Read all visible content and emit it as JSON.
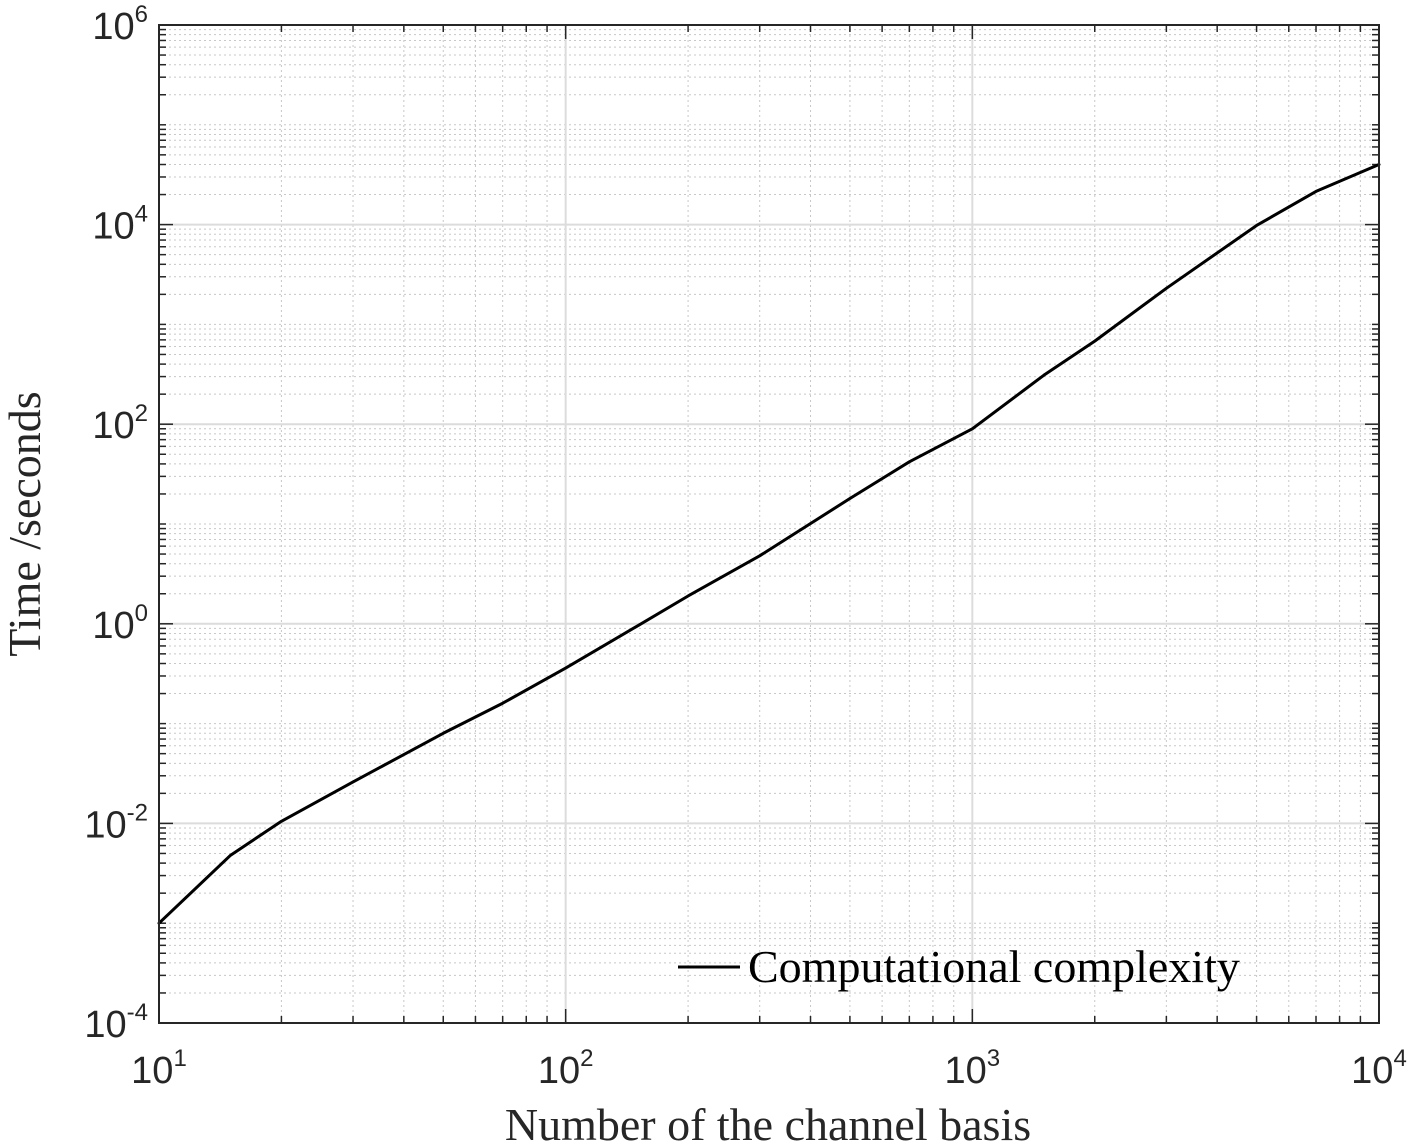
{
  "chart_data": {
    "type": "line",
    "title": "",
    "xlabel": "Number of the channel basis",
    "ylabel": "Time /seconds",
    "xscale": "log",
    "yscale": "log",
    "xlim": [
      10,
      10000
    ],
    "ylim": [
      0.0001,
      1000000
    ],
    "grid": true,
    "minor_grid": true,
    "legend_position": "bottom-right",
    "x_ticks": [
      {
        "base": "10",
        "exp": "1"
      },
      {
        "base": "10",
        "exp": "2"
      },
      {
        "base": "10",
        "exp": "3"
      },
      {
        "base": "10",
        "exp": "4"
      }
    ],
    "y_ticks": [
      {
        "base": "10",
        "exp": "-4"
      },
      {
        "base": "10",
        "exp": "-2"
      },
      {
        "base": "10",
        "exp": "0"
      },
      {
        "base": "10",
        "exp": "2"
      },
      {
        "base": "10",
        "exp": "4"
      },
      {
        "base": "10",
        "exp": "6"
      }
    ],
    "series": [
      {
        "name": "Computational complexity",
        "color": "#000000",
        "x": [
          10,
          15,
          20,
          30,
          50,
          70,
          100,
          150,
          200,
          300,
          500,
          700,
          1000,
          1500,
          2000,
          3000,
          5000,
          7000,
          10000
        ],
        "y": [
          0.001,
          0.0048,
          0.0105,
          0.026,
          0.08,
          0.16,
          0.36,
          0.95,
          1.9,
          4.8,
          18,
          42,
          90,
          310,
          680,
          2300,
          9800,
          21500,
          40000
        ]
      }
    ]
  }
}
